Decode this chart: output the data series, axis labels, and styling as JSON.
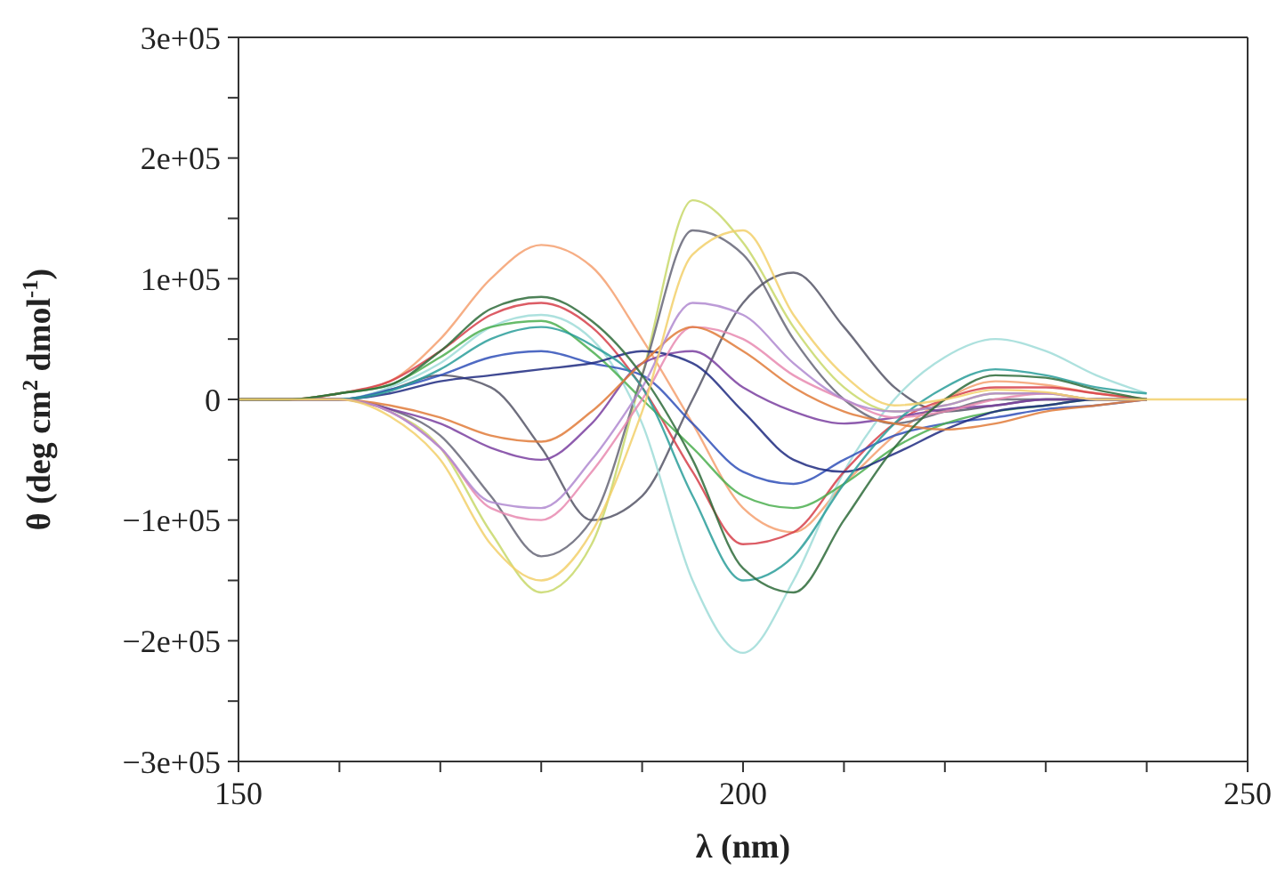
{
  "chart_data": {
    "type": "line",
    "xlabel": "λ (nm)",
    "ylabel": "θ (deg cm$^{2}$ dmol$^{-1}$)",
    "x": [
      150,
      155,
      160,
      165,
      170,
      175,
      180,
      185,
      190,
      195,
      200,
      205,
      210,
      215,
      220,
      225,
      230,
      235,
      240,
      245,
      250
    ],
    "xlim": [
      150,
      250
    ],
    "xticks": [
      150,
      {
        "value": 160,
        "label": null
      },
      {
        "value": 170,
        "label": null
      },
      {
        "value": 180,
        "label": null
      },
      {
        "value": 190,
        "label": null
      },
      200,
      {
        "value": 210,
        "label": null
      },
      {
        "value": 220,
        "label": null
      },
      {
        "value": 230,
        "label": null
      },
      {
        "value": 240,
        "label": null
      },
      250
    ],
    "ylim": [
      -300000,
      300000
    ],
    "yticks": [
      {
        "value": -300000,
        "label": "−3e+05"
      },
      {
        "value": -250000,
        "label": null
      },
      {
        "value": -200000,
        "label": "−2e+05"
      },
      {
        "value": -150000,
        "label": null
      },
      {
        "value": -100000,
        "label": "−1e+05"
      },
      {
        "value": -50000,
        "label": null
      },
      0,
      {
        "value": 50000,
        "label": null
      },
      {
        "value": 100000,
        "label": "1e+05"
      },
      {
        "value": 150000,
        "label": null
      },
      {
        "value": 200000,
        "label": "2e+05"
      },
      {
        "value": 250000,
        "label": null
      },
      {
        "value": 300000,
        "label": "3e+05"
      }
    ],
    "grid": false,
    "marker": "none",
    "line_style": "solid",
    "series": [
      {
        "color": "#f5a070",
        "values": [
          0,
          0,
          5000,
          15000,
          50000,
          100000,
          128000,
          110000,
          50000,
          -20000,
          -90000,
          -110000,
          -70000,
          -30000,
          0,
          15000,
          12000,
          5000,
          0,
          null,
          null
        ]
      },
      {
        "color": "#c8d86a",
        "values": [
          0,
          0,
          0,
          -10000,
          -40000,
          -110000,
          -160000,
          -120000,
          20000,
          165000,
          130000,
          60000,
          10000,
          -10000,
          -5000,
          5000,
          5000,
          0,
          0,
          null,
          null
        ]
      },
      {
        "color": "#666677",
        "values": [
          0,
          0,
          0,
          -8000,
          -30000,
          -80000,
          -130000,
          -100000,
          20000,
          140000,
          120000,
          50000,
          0,
          -20000,
          -10000,
          0,
          0,
          0,
          0,
          null,
          null
        ]
      },
      {
        "color": "#555566",
        "values": [
          0,
          0,
          0,
          8000,
          20000,
          10000,
          -40000,
          -100000,
          -80000,
          0,
          80000,
          105000,
          60000,
          10000,
          -10000,
          -5000,
          0,
          0,
          0,
          null,
          null
        ]
      },
      {
        "color": "#9fdcd8",
        "values": [
          0,
          0,
          0,
          10000,
          30000,
          60000,
          70000,
          50000,
          -20000,
          -150000,
          -210000,
          -150000,
          -60000,
          0,
          35000,
          50000,
          40000,
          20000,
          5000,
          null,
          null
        ]
      },
      {
        "color": "#d6404a",
        "values": [
          0,
          0,
          5000,
          15000,
          40000,
          70000,
          80000,
          60000,
          10000,
          -60000,
          -120000,
          -110000,
          -60000,
          -20000,
          0,
          10000,
          10000,
          5000,
          0,
          null,
          null
        ]
      },
      {
        "color": "#3050b8",
        "values": [
          0,
          0,
          0,
          8000,
          20000,
          35000,
          40000,
          30000,
          20000,
          -20000,
          -60000,
          -70000,
          -50000,
          -30000,
          -20000,
          -15000,
          -8000,
          -5000,
          0,
          null,
          null
        ]
      },
      {
        "color": "#7a3fa0",
        "values": [
          0,
          0,
          0,
          -8000,
          -20000,
          -40000,
          -50000,
          -20000,
          30000,
          40000,
          10000,
          -10000,
          -20000,
          -15000,
          -8000,
          -5000,
          0,
          0,
          0,
          null,
          null
        ]
      },
      {
        "color": "#4caf50",
        "values": [
          0,
          0,
          5000,
          12000,
          35000,
          60000,
          65000,
          40000,
          0,
          -40000,
          -80000,
          -90000,
          -70000,
          -40000,
          -20000,
          -10000,
          -5000,
          0,
          0,
          null,
          null
        ]
      },
      {
        "color": "#1f2a80",
        "values": [
          0,
          0,
          0,
          5000,
          15000,
          20000,
          25000,
          30000,
          40000,
          30000,
          -10000,
          -50000,
          -60000,
          -45000,
          -25000,
          -10000,
          -5000,
          0,
          0,
          null,
          null
        ]
      },
      {
        "color": "#e88ab0",
        "values": [
          0,
          0,
          0,
          -10000,
          -40000,
          -90000,
          -100000,
          -60000,
          0,
          60000,
          50000,
          20000,
          0,
          -15000,
          -10000,
          0,
          5000,
          0,
          0,
          null,
          null
        ]
      },
      {
        "color": "#2a9d9a",
        "values": [
          0,
          0,
          0,
          7000,
          25000,
          50000,
          60000,
          45000,
          10000,
          -80000,
          -150000,
          -130000,
          -70000,
          -20000,
          10000,
          25000,
          20000,
          10000,
          5000,
          null,
          null
        ]
      },
      {
        "color": "#e07b39",
        "values": [
          0,
          0,
          0,
          -5000,
          -15000,
          -30000,
          -35000,
          -10000,
          30000,
          60000,
          40000,
          10000,
          -10000,
          -20000,
          -25000,
          -20000,
          -10000,
          -5000,
          0,
          null,
          null
        ]
      },
      {
        "color": "#b08ad0",
        "values": [
          0,
          0,
          0,
          -10000,
          -40000,
          -85000,
          -90000,
          -50000,
          10000,
          80000,
          70000,
          30000,
          0,
          -10000,
          -5000,
          5000,
          5000,
          0,
          0,
          null,
          null
        ]
      },
      {
        "color": "#2e6b3a",
        "values": [
          0,
          0,
          5000,
          12000,
          40000,
          75000,
          85000,
          65000,
          20000,
          -50000,
          -140000,
          -160000,
          -100000,
          -40000,
          0,
          20000,
          18000,
          8000,
          0,
          null,
          null
        ]
      },
      {
        "color": "#f2d06b",
        "values": [
          0,
          0,
          0,
          -14000,
          -50000,
          -120000,
          -150000,
          -110000,
          -10000,
          120000,
          140000,
          70000,
          20000,
          -5000,
          0,
          8000,
          6000,
          0,
          0,
          0,
          0
        ]
      }
    ]
  }
}
